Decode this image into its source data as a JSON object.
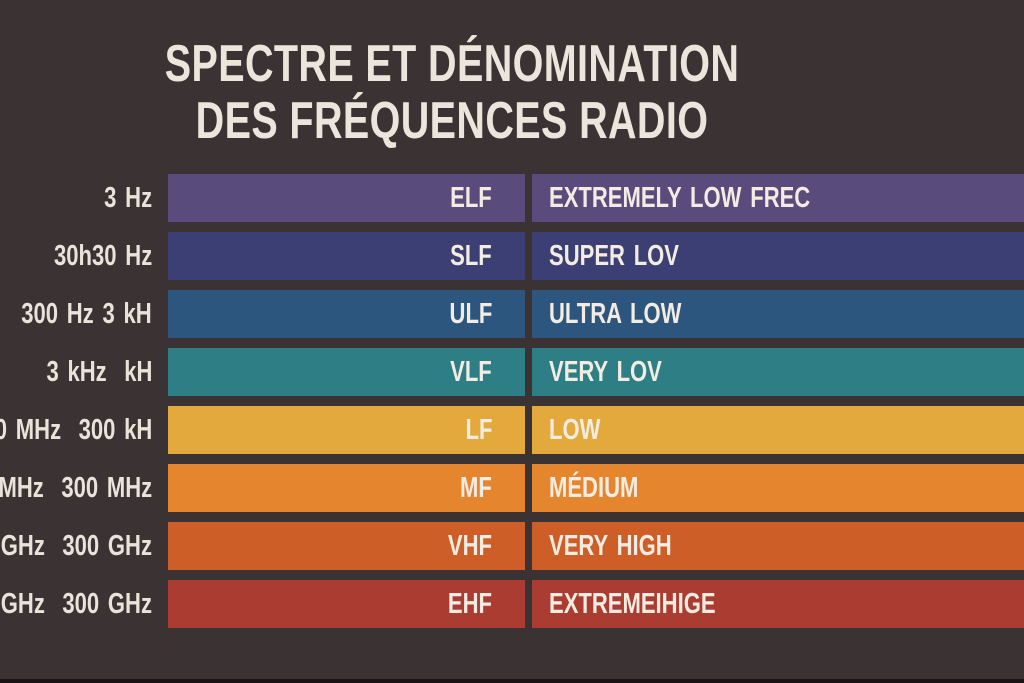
{
  "title": {
    "line1": "SPECTRE ET DÉNOMINATION",
    "line2": "DES FRÉQUENCES RADIO"
  },
  "colors": {
    "background": "#3b3234",
    "title_text": "#ece5db",
    "label_text": "#eae3d9",
    "bar_text": "#f3ece2",
    "bottom_strip": "#1b1417"
  },
  "rows": [
    {
      "range": "3 Hz",
      "abbr": "ELF",
      "name": "EXTREMELY LOW FREC",
      "color": "#5a4b7d"
    },
    {
      "range": "30h30 Hz",
      "abbr": "SLF",
      "name": "SUPER LOV",
      "color": "#3c3f73"
    },
    {
      "range": "300 Hz 3 kH",
      "abbr": "ULF",
      "name": "ULTRA LOW",
      "color": "#2d567e"
    },
    {
      "range": "3 kHz  kH",
      "abbr": "VLF",
      "name": "VERY LOV",
      "color": "#2e7e86"
    },
    {
      "range": "0 MHz  300 kH",
      "abbr": "LF",
      "name": "LOW",
      "color": "#e3a93d"
    },
    {
      "range": "MHz  300 MHz",
      "abbr": "MF",
      "name": "MÉDIUM",
      "color": "#e5862f"
    },
    {
      "range": "GHz  300 GHz",
      "abbr": "VHF",
      "name": "VERY HIGH",
      "color": "#cd5e28"
    },
    {
      "range": "GHz  300 GHz",
      "abbr": "EHF",
      "name": "EXTREMEIHIGE",
      "color": "#ab3c31"
    }
  ],
  "chart_data": {
    "type": "table",
    "title": "SPECTRE ET DÉNOMINATION DES FRÉQUENCES RADIO",
    "columns": [
      "frequency_range",
      "band_abbreviation",
      "band_name"
    ],
    "rows": [
      [
        "3 Hz",
        "ELF",
        "EXTREMELY LOW FREC"
      ],
      [
        "30h30 Hz",
        "SLF",
        "SUPER LOV"
      ],
      [
        "300 Hz 3 kH",
        "ULF",
        "ULTRA LOW"
      ],
      [
        "3 kHz  kH",
        "VLF",
        "VERY LOV"
      ],
      [
        "0 MHz  300 kH",
        "LF",
        "LOW"
      ],
      [
        "MHz  300 MHz",
        "MF",
        "MÉDIUM"
      ],
      [
        "GHz  300 GHz",
        "VHF",
        "VERY HIGH"
      ],
      [
        "GHz  300 GHz",
        "EHF",
        "EXTREMEIHIGE"
      ]
    ],
    "bar_colors": [
      "#5a4b7d",
      "#3c3f73",
      "#2d567e",
      "#2e7e86",
      "#e3a93d",
      "#e5862f",
      "#cd5e28",
      "#ab3c31"
    ],
    "legend_position": "none",
    "grid": false
  }
}
